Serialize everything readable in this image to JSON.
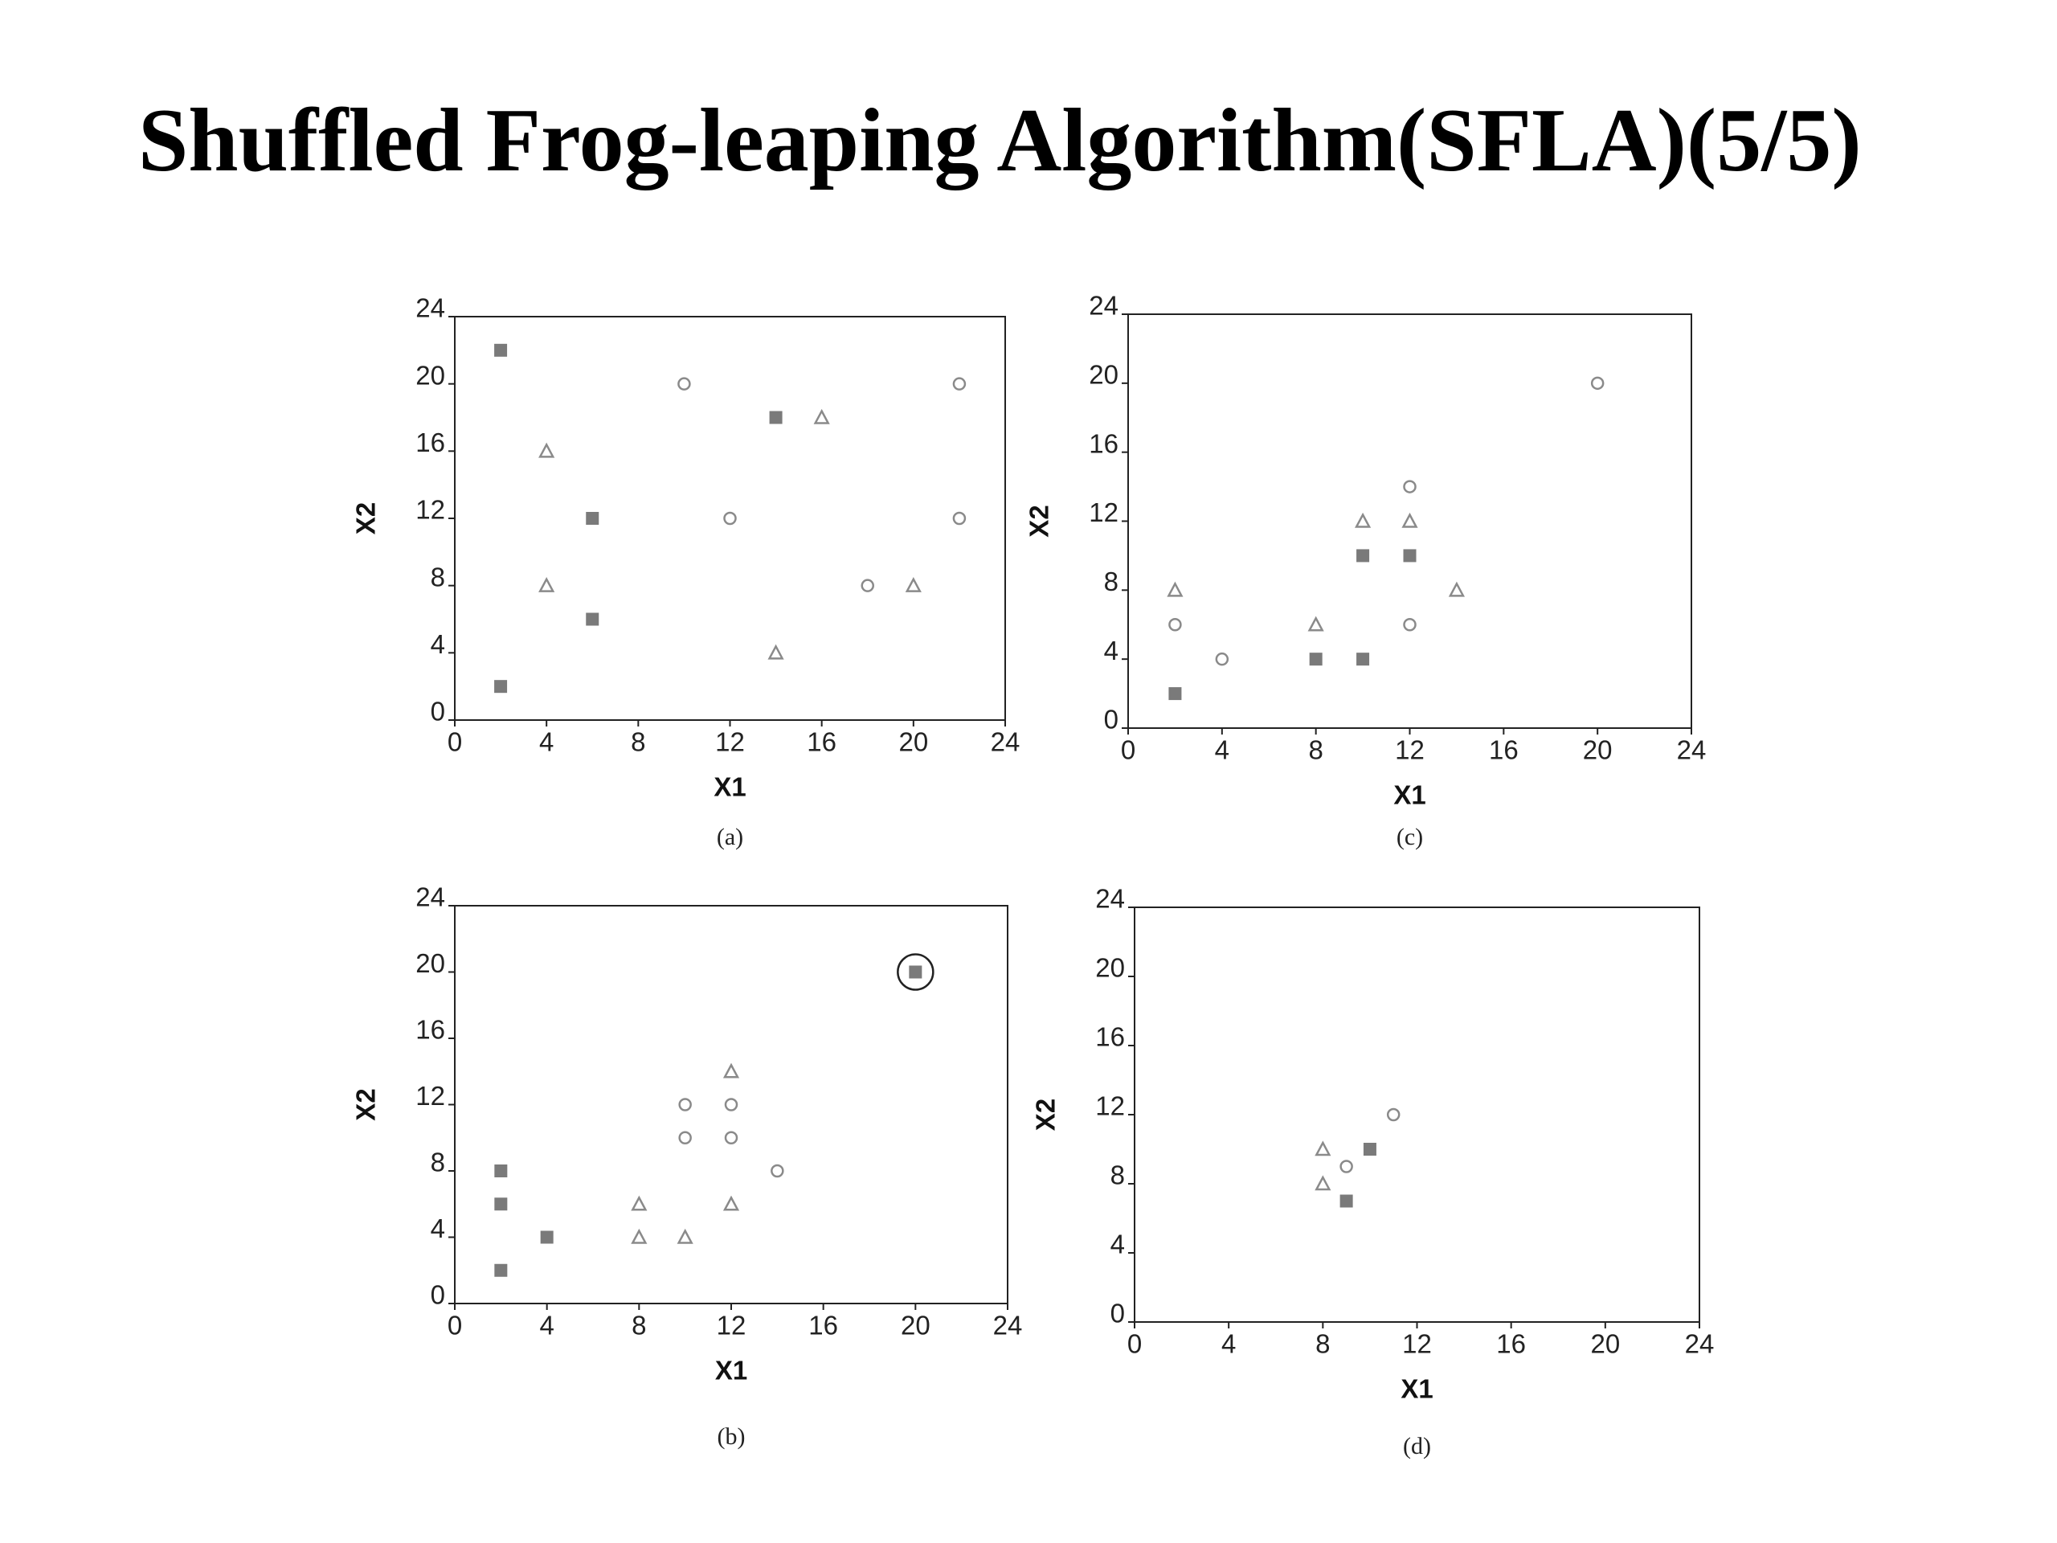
{
  "title": "Shuffled Frog-leaping Algorithm(SFLA)(5/5)",
  "chart_data": [
    {
      "type": "scatter",
      "xlabel": "X1",
      "ylabel": "X2",
      "caption": "(a)",
      "xlim": [
        0,
        24
      ],
      "ylim": [
        0,
        24
      ],
      "xticks": [
        0,
        4,
        8,
        12,
        16,
        20,
        24
      ],
      "yticks": [
        0,
        4,
        8,
        12,
        16,
        20,
        24
      ],
      "series": [
        {
          "marker": "square",
          "color": "#7a7a7a",
          "x": [
            2,
            14,
            6,
            6,
            2
          ],
          "values": [
            22,
            18,
            12,
            6,
            2
          ]
        },
        {
          "marker": "circle",
          "color": "#8a8a8a",
          "x": [
            10,
            22,
            12,
            22,
            18
          ],
          "values": [
            20,
            20,
            12,
            12,
            8
          ]
        },
        {
          "marker": "triangle",
          "color": "#8a8a8a",
          "x": [
            16,
            4,
            4,
            20,
            14
          ],
          "values": [
            18,
            16,
            8,
            8,
            4
          ]
        }
      ]
    },
    {
      "type": "scatter",
      "xlabel": "X1",
      "ylabel": "X2",
      "caption": "(c)",
      "xlim": [
        0,
        24
      ],
      "ylim": [
        0,
        24
      ],
      "xticks": [
        0,
        4,
        8,
        12,
        16,
        20,
        24
      ],
      "yticks": [
        0,
        4,
        8,
        12,
        16,
        20,
        24
      ],
      "series": [
        {
          "marker": "square",
          "color": "#7a7a7a",
          "x": [
            10,
            12,
            8,
            10,
            2
          ],
          "values": [
            10,
            10,
            4,
            4,
            2
          ]
        },
        {
          "marker": "circle",
          "color": "#8a8a8a",
          "x": [
            20,
            12,
            2,
            4,
            12
          ],
          "values": [
            20,
            14,
            6,
            4,
            6
          ]
        },
        {
          "marker": "triangle",
          "color": "#8a8a8a",
          "x": [
            2,
            10,
            12,
            8,
            14
          ],
          "values": [
            8,
            12,
            12,
            6,
            8
          ]
        }
      ]
    },
    {
      "type": "scatter",
      "xlabel": "X1",
      "ylabel": "X2",
      "caption": "(b)",
      "xlim": [
        0,
        24
      ],
      "ylim": [
        0,
        24
      ],
      "xticks": [
        0,
        4,
        8,
        12,
        16,
        20,
        24
      ],
      "yticks": [
        0,
        4,
        8,
        12,
        16,
        20,
        24
      ],
      "series": [
        {
          "marker": "square",
          "color": "#7a7a7a",
          "x": [
            20,
            2,
            2,
            4,
            2
          ],
          "values": [
            20,
            8,
            6,
            4,
            2
          ],
          "highlight_point": 0
        },
        {
          "marker": "circle",
          "color": "#8a8a8a",
          "x": [
            10,
            12,
            10,
            12,
            14
          ],
          "values": [
            12,
            12,
            10,
            10,
            8
          ]
        },
        {
          "marker": "triangle",
          "color": "#8a8a8a",
          "x": [
            12,
            8,
            12,
            8,
            10
          ],
          "values": [
            14,
            6,
            6,
            4,
            4
          ]
        }
      ]
    },
    {
      "type": "scatter",
      "xlabel": "X1",
      "ylabel": "X2",
      "caption": "(d)",
      "xlim": [
        0,
        24
      ],
      "ylim": [
        0,
        24
      ],
      "xticks": [
        0,
        4,
        8,
        12,
        16,
        20,
        24
      ],
      "yticks": [
        0,
        4,
        8,
        12,
        16,
        20,
        24
      ],
      "series": [
        {
          "marker": "square",
          "color": "#7a7a7a",
          "x": [
            10,
            9
          ],
          "values": [
            10,
            7
          ]
        },
        {
          "marker": "circle",
          "color": "#8a8a8a",
          "x": [
            9,
            11
          ],
          "values": [
            9,
            12
          ]
        },
        {
          "marker": "triangle",
          "color": "#8a8a8a",
          "x": [
            8,
            8
          ],
          "values": [
            10,
            8
          ]
        }
      ]
    }
  ]
}
